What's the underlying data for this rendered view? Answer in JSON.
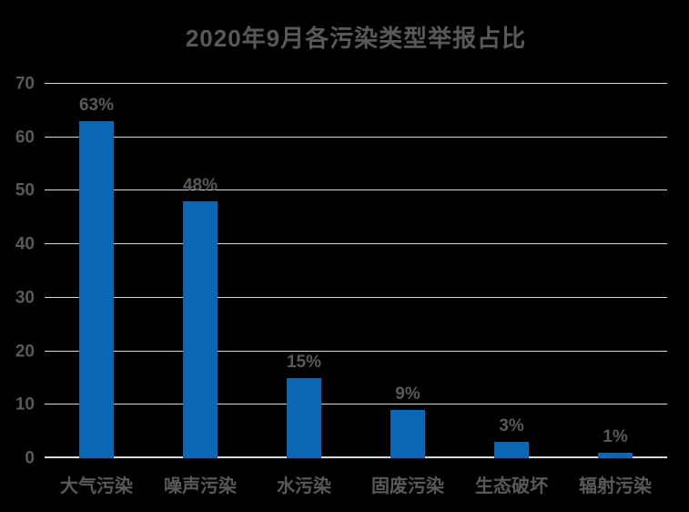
{
  "colors": {
    "background": "#000000",
    "bar": "#0B66B3",
    "text": "#595959",
    "gridline": "#D9D9D9",
    "axis_line": "#D9D9D9"
  },
  "chart_data": {
    "type": "bar",
    "title": "2020年9月各污染类型举报占比",
    "categories": [
      "大气污染",
      "噪声污染",
      "水污染",
      "固废污染",
      "生态破坏",
      "辐射污染"
    ],
    "values": [
      63,
      48,
      15,
      9,
      3,
      1
    ],
    "data_labels": [
      "63%",
      "48%",
      "15%",
      "9%",
      "3%",
      "1%"
    ],
    "xlabel": "",
    "ylabel": "",
    "ylim": [
      0,
      70
    ],
    "yticks": [
      0,
      10,
      20,
      30,
      40,
      50,
      60,
      70
    ],
    "grid": "horizontal",
    "legend": "none"
  }
}
